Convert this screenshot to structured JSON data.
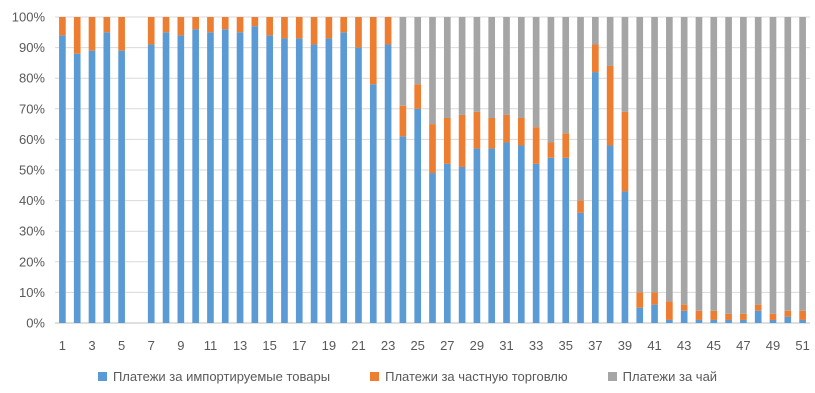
{
  "chart_data": {
    "type": "bar",
    "stacked": true,
    "title": "",
    "xlabel": "",
    "ylabel": "",
    "ylim": [
      0,
      100
    ],
    "ytick_labels": [
      "0%",
      "10%",
      "20%",
      "30%",
      "40%",
      "50%",
      "60%",
      "70%",
      "80%",
      "90%",
      "100%"
    ],
    "categories": [
      1,
      2,
      3,
      4,
      5,
      6,
      7,
      8,
      9,
      10,
      11,
      12,
      13,
      14,
      15,
      16,
      17,
      18,
      19,
      20,
      21,
      22,
      23,
      24,
      25,
      26,
      27,
      28,
      29,
      30,
      31,
      32,
      33,
      34,
      35,
      36,
      37,
      38,
      39,
      40,
      41,
      42,
      43,
      44,
      45,
      46,
      47,
      48,
      49,
      50,
      51
    ],
    "xtick_labels": [
      "1",
      "3",
      "5",
      "7",
      "9",
      "11",
      "13",
      "15",
      "17",
      "19",
      "21",
      "23",
      "25",
      "27",
      "29",
      "31",
      "33",
      "35",
      "37",
      "39",
      "41",
      "43",
      "45",
      "47",
      "49",
      "51"
    ],
    "grid": true,
    "legend_position": "bottom",
    "series": [
      {
        "name": "Платежи за импортируемые товары",
        "color": "#5b9bd5",
        "values": [
          94,
          88,
          89,
          95,
          89,
          0,
          91,
          95,
          94,
          96,
          95,
          96,
          95,
          97,
          94,
          93,
          93,
          91,
          93,
          95,
          90,
          78,
          91,
          61,
          70,
          49,
          52,
          51,
          57,
          57,
          59,
          58,
          52,
          54,
          54,
          36,
          82,
          58,
          43,
          5,
          6,
          1,
          4,
          1,
          1,
          1,
          1,
          4,
          1,
          2,
          1
        ]
      },
      {
        "name": "Платежи за частную торговлю",
        "color": "#ed7d31",
        "values": [
          6,
          12,
          11,
          5,
          11,
          0,
          9,
          5,
          6,
          4,
          5,
          4,
          5,
          3,
          6,
          7,
          7,
          9,
          7,
          5,
          10,
          22,
          9,
          10,
          8,
          16,
          15,
          17,
          12,
          10,
          9,
          9,
          12,
          5,
          8,
          4,
          9,
          26,
          26,
          5,
          4,
          6,
          2,
          3,
          3,
          2,
          2,
          2,
          2,
          2,
          3
        ]
      },
      {
        "name": "Платежи за чай",
        "color": "#a5a5a5",
        "values": [
          0,
          0,
          0,
          0,
          0,
          0,
          0,
          0,
          0,
          0,
          0,
          0,
          0,
          0,
          0,
          0,
          0,
          0,
          0,
          0,
          0,
          0,
          0,
          29,
          22,
          35,
          33,
          32,
          31,
          33,
          32,
          33,
          36,
          41,
          38,
          60,
          9,
          16,
          31,
          90,
          90,
          93,
          94,
          96,
          96,
          97,
          97,
          94,
          97,
          96,
          96
        ]
      }
    ]
  }
}
